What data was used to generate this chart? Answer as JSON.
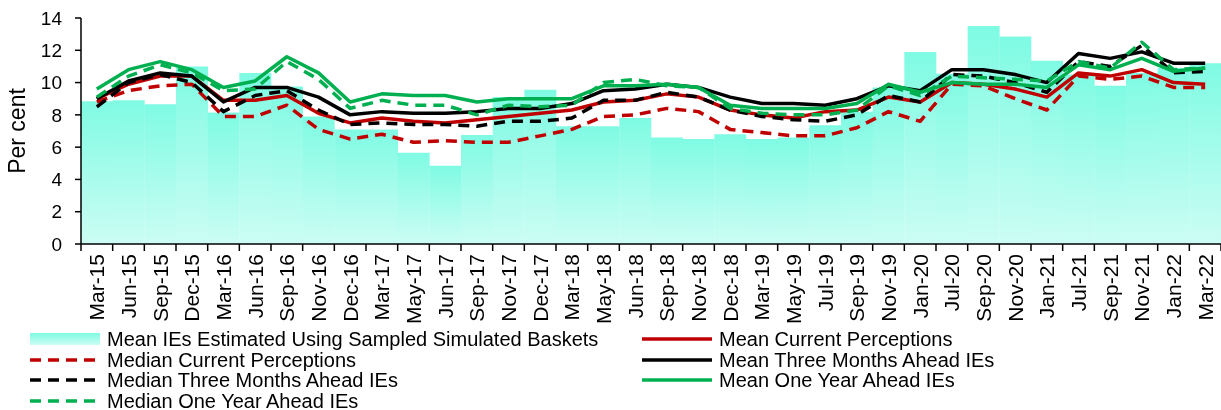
{
  "chart_data": {
    "type": "bar",
    "ylabel": "Per cent",
    "categories": [
      "Mar-15",
      "Jun-15",
      "Sep-15",
      "Dec-15",
      "Mar-16",
      "Jun-16",
      "Sep-16",
      "Nov-16",
      "Dec-16",
      "Mar-17",
      "May-17",
      "Jun-17",
      "Sep-17",
      "Nov-17",
      "Dec-17",
      "Mar-18",
      "May-18",
      "Jun-18",
      "Sep-18",
      "Nov-18",
      "Dec-18",
      "Mar-19",
      "May-19",
      "Jul-19",
      "Sep-19",
      "Nov-19",
      "Jan-20",
      "Jul-20",
      "Sep-20",
      "Nov-20",
      "Jan-21",
      "Jul-21",
      "Sep-21",
      "Nov-21",
      "Jan-22",
      "Mar-22"
    ],
    "ylim": [
      0,
      14
    ],
    "yticks": [
      0,
      2,
      4,
      6,
      8,
      10,
      12,
      14
    ],
    "legend": "bottom",
    "series": [
      {
        "name": "Mean IEs Estimated Using Sampled Simulated Baskets",
        "color": "#7ffbe3",
        "values": [
          8.85,
          8.9,
          8.65,
          11.0,
          8.15,
          10.6,
          9.75,
          7.9,
          7.1,
          7.1,
          5.65,
          4.85,
          6.75,
          9.1,
          9.55,
          7.3,
          7.3,
          7.8,
          6.6,
          6.5,
          6.8,
          6.5,
          6.6,
          7.35,
          8.2,
          9.7,
          11.9,
          10.55,
          13.5,
          12.85,
          11.35,
          10.5,
          9.8,
          10.6,
          10.9,
          11.2
        ]
      },
      {
        "name": "Mean Current Perceptions",
        "type": "line",
        "line_style": "solid",
        "color": "#c00000",
        "values": [
          9.0,
          9.9,
          10.4,
          10.4,
          8.9,
          8.9,
          9.2,
          8.1,
          7.5,
          7.8,
          7.6,
          7.5,
          7.7,
          7.9,
          8.1,
          8.3,
          8.8,
          8.9,
          9.3,
          9.1,
          8.3,
          8.0,
          7.8,
          8.2,
          8.3,
          9.1,
          8.8,
          10.0,
          9.9,
          9.6,
          9.1,
          10.6,
          10.4,
          10.8,
          10.0,
          9.9
        ]
      },
      {
        "name": "Median Current Perceptions",
        "type": "line",
        "line_style": "dashed",
        "color": "#c00000",
        "values": [
          8.8,
          9.5,
          9.8,
          9.9,
          7.9,
          7.9,
          8.6,
          7.1,
          6.5,
          6.8,
          6.3,
          6.4,
          6.3,
          6.3,
          6.7,
          7.1,
          7.9,
          8.0,
          8.4,
          8.2,
          7.1,
          6.9,
          6.7,
          6.7,
          7.2,
          8.2,
          7.6,
          9.9,
          9.8,
          9.0,
          8.3,
          10.4,
          10.2,
          10.4,
          9.7,
          9.7
        ]
      },
      {
        "name": "Mean Three Months Ahead IEs",
        "type": "line",
        "line_style": "solid",
        "color": "#000000",
        "values": [
          9.0,
          10.1,
          10.6,
          10.4,
          8.8,
          9.7,
          9.7,
          9.1,
          8.0,
          8.2,
          8.1,
          8.1,
          8.2,
          8.4,
          8.4,
          8.7,
          9.5,
          9.6,
          9.9,
          9.7,
          9.1,
          8.7,
          8.7,
          8.6,
          9.0,
          9.8,
          9.5,
          10.8,
          10.8,
          10.5,
          10.0,
          11.8,
          11.5,
          11.9,
          11.2,
          11.2
        ]
      },
      {
        "name": "Median Three Months Ahead IEs",
        "type": "line",
        "line_style": "dashed",
        "color": "#000000",
        "values": [
          8.5,
          10.0,
          10.5,
          10.0,
          8.2,
          9.2,
          9.5,
          8.3,
          7.4,
          7.5,
          7.4,
          7.4,
          7.3,
          7.6,
          7.6,
          7.8,
          8.9,
          8.9,
          9.4,
          9.1,
          8.3,
          7.9,
          7.7,
          7.6,
          8.0,
          9.2,
          8.8,
          10.5,
          10.4,
          10.0,
          9.4,
          11.3,
          11.0,
          12.3,
          10.6,
          10.7
        ]
      },
      {
        "name": "Mean One Year Ahead IEs",
        "type": "line",
        "line_style": "solid",
        "color": "#00b050",
        "values": [
          9.6,
          10.8,
          11.3,
          10.8,
          9.7,
          10.1,
          11.6,
          10.6,
          8.8,
          9.3,
          9.2,
          9.2,
          8.8,
          9.0,
          9.0,
          9.0,
          9.8,
          9.8,
          9.9,
          9.7,
          8.6,
          8.4,
          8.4,
          8.4,
          8.7,
          9.9,
          9.4,
          10.0,
          9.9,
          9.9,
          9.7,
          11.1,
          10.8,
          11.5,
          10.7,
          10.9
        ]
      },
      {
        "name": "Median One Year Ahead IEs",
        "type": "line",
        "line_style": "dashed",
        "color": "#00b050",
        "values": [
          9.1,
          10.4,
          11.1,
          10.6,
          9.5,
          9.6,
          11.3,
          10.2,
          8.4,
          8.9,
          8.6,
          8.6,
          8.0,
          8.6,
          8.5,
          8.6,
          10.0,
          10.2,
          9.8,
          9.7,
          8.4,
          8.1,
          8.0,
          8.0,
          8.3,
          9.8,
          9.2,
          10.4,
          10.3,
          10.2,
          10.1,
          11.3,
          10.9,
          12.5,
          10.8,
          10.9
        ]
      }
    ]
  }
}
